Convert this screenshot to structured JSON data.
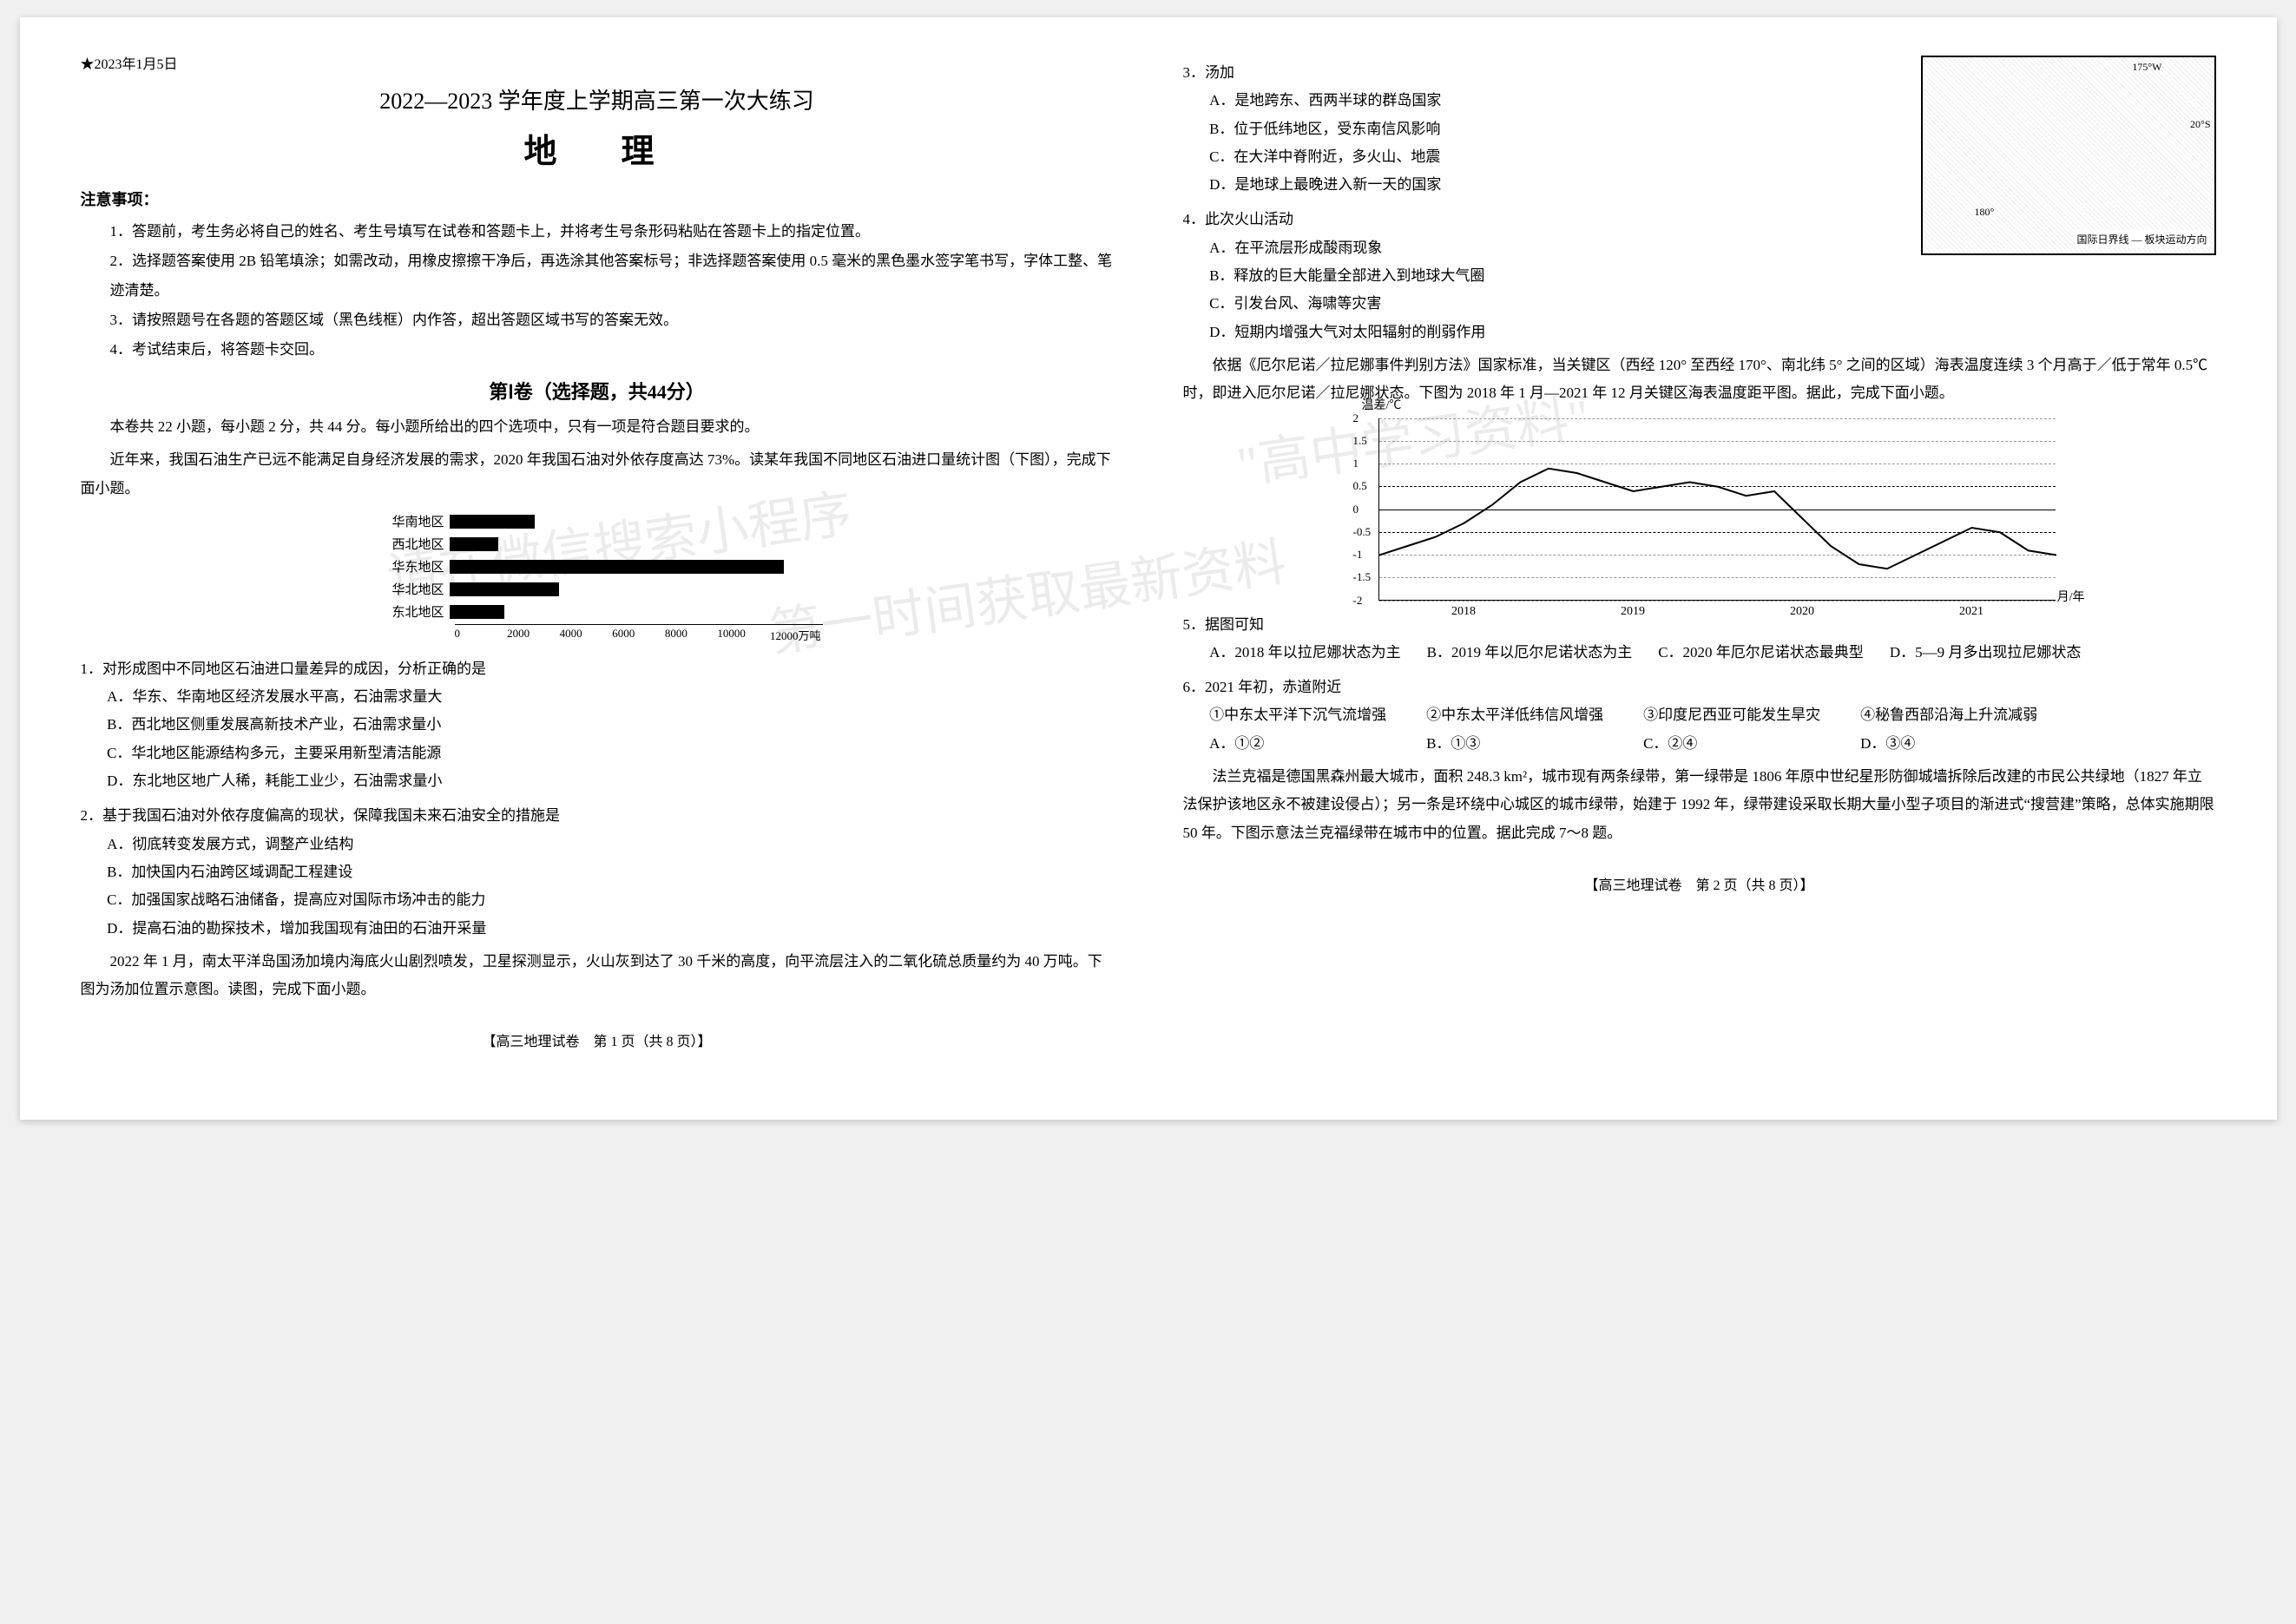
{
  "header": {
    "date_star": "★2023年1月5日",
    "exam_title": "2022—2023 学年度上学期高三第一次大练习",
    "subject": "地　理",
    "notice_head": "注意事项：",
    "notices": [
      "1．答题前，考生务必将自己的姓名、考生号填写在试卷和答题卡上，并将考生号条形码粘贴在答题卡上的指定位置。",
      "2．选择题答案使用 2B 铅笔填涂；如需改动，用橡皮擦擦干净后，再选涂其他答案标号；非选择题答案使用 0.5 毫米的黑色墨水签字笔书写，字体工整、笔迹清楚。",
      "3．请按照题号在各题的答题区域（黑色线框）内作答，超出答题区域书写的答案无效。",
      "4．考试结束后，将答题卡交回。"
    ],
    "section1": "第Ⅰ卷（选择题，共44分）",
    "section1_note": "本卷共 22 小题，每小题 2 分，共 44 分。每小题所给出的四个选项中，只有一项是符合题目要求的。"
  },
  "passage1": {
    "intro": "近年来，我国石油生产已远不能满足自身经济发展的需求，2020 年我国石油对外依存度高达 73%。读某年我国不同地区石油进口量统计图（下图），完成下面小题。",
    "bars": {
      "regions": [
        "华南地区",
        "西北地区",
        "华东地区",
        "华北地区",
        "东北地区"
      ],
      "values": [
        2800,
        1600,
        11000,
        3600,
        1800
      ],
      "axis": [
        "0",
        "2000",
        "4000",
        "6000",
        "8000",
        "10000",
        "12000万吨"
      ],
      "max": 12000,
      "bar_color": "#000000"
    },
    "q1": {
      "stem": "1．对形成图中不同地区石油进口量差异的成因，分析正确的是",
      "opts": [
        "A．华东、华南地区经济发展水平高，石油需求量大",
        "B．西北地区侧重发展高新技术产业，石油需求量小",
        "C．华北地区能源结构多元，主要采用新型清洁能源",
        "D．东北地区地广人稀，耗能工业少，石油需求量小"
      ]
    },
    "q2": {
      "stem": "2．基于我国石油对外依存度偏高的现状，保障我国未来石油安全的措施是",
      "opts": [
        "A．彻底转变发展方式，调整产业结构",
        "B．加快国内石油跨区域调配工程建设",
        "C．加强国家战略石油储备，提高应对国际市场冲击的能力",
        "D．提高石油的勘探技术，增加我国现有油田的石油开采量"
      ]
    }
  },
  "passage2": {
    "intro": "2022 年 1 月，南太平洋岛国汤加境内海底火山剧烈喷发，卫星探测显示，火山灰到达了 30 千米的高度，向平流层注入的二氧化硫总质量约为 40 万吨。下图为汤加位置示意图。读图，完成下面小题。",
    "footer": "【高三地理试卷　第 1 页（共 8 页）】"
  },
  "right": {
    "q3": {
      "stem": "3．汤加",
      "opts": [
        "A．是地跨东、西两半球的群岛国家",
        "B．位于低纬地区，受东南信风影响",
        "C．在大洋中脊附近，多火山、地震",
        "D．是地球上最晚进入新一天的国家"
      ]
    },
    "q4": {
      "stem": "4．此次火山活动",
      "opts": [
        "A．在平流层形成酸雨现象",
        "B．释放的巨大能量全部进入到地球大气圈",
        "C．引发台风、海啸等灾害",
        "D．短期内增强大气对太阳辐射的削弱作用"
      ]
    },
    "map": {
      "coords": [
        "175°W",
        "20°S",
        "180°"
      ],
      "legend": [
        "国际日界线",
        "板块运动方向"
      ]
    },
    "passage3_intro": "依据《厄尔尼诺／拉尼娜事件判别方法》国家标准，当关键区（西经 120° 至西经 170°、南北纬 5° 之间的区域）海表温度连续 3 个月高于／低于常年 0.5℃时，即进入厄尔尼诺／拉尼娜状态。下图为 2018 年 1 月—2021 年 12 月关键区海表温度距平图。据此，完成下面小题。",
    "chart": {
      "ylabel": "温差/℃",
      "yticks": [
        "2",
        "1.5",
        "1",
        "0.5",
        "0",
        "-0.5",
        "-1",
        "-1.5",
        "-2"
      ],
      "ylim": [
        -2,
        2
      ],
      "years": [
        "2018",
        "2019",
        "2020",
        "2021"
      ],
      "xunit": "月/年",
      "threshold_pos": 0.5,
      "threshold_neg": -0.5,
      "line_color": "#000000",
      "grid_color": "#999999",
      "points": [
        [
          0,
          -1.0
        ],
        [
          2,
          -0.8
        ],
        [
          4,
          -0.6
        ],
        [
          6,
          -0.3
        ],
        [
          8,
          0.1
        ],
        [
          10,
          0.6
        ],
        [
          12,
          0.9
        ],
        [
          14,
          0.8
        ],
        [
          16,
          0.6
        ],
        [
          18,
          0.4
        ],
        [
          20,
          0.5
        ],
        [
          22,
          0.6
        ],
        [
          24,
          0.5
        ],
        [
          26,
          0.3
        ],
        [
          28,
          0.4
        ],
        [
          30,
          -0.2
        ],
        [
          32,
          -0.8
        ],
        [
          34,
          -1.2
        ],
        [
          36,
          -1.3
        ],
        [
          38,
          -1.0
        ],
        [
          40,
          -0.7
        ],
        [
          42,
          -0.4
        ],
        [
          44,
          -0.5
        ],
        [
          46,
          -0.9
        ],
        [
          48,
          -1.0
        ]
      ]
    },
    "q5": {
      "stem": "5．据图可知",
      "opts": [
        "A．2018 年以拉尼娜状态为主",
        "B．2019 年以厄尔尼诺状态为主",
        "C．2020 年厄尔尼诺状态最典型",
        "D．5—9 月多出现拉尼娜状态"
      ]
    },
    "q6": {
      "stem": "6．2021 年初，赤道附近",
      "circled": [
        "①中东太平洋下沉气流增强",
        "②中东太平洋低纬信风增强",
        "③印度尼西亚可能发生旱灾",
        "④秘鲁西部沿海上升流减弱"
      ],
      "opts": [
        "A．①②",
        "B．①③",
        "C．②④",
        "D．③④"
      ]
    },
    "passage4_intro": "法兰克福是德国黑森州最大城市，面积 248.3 km²，城市现有两条绿带，第一绿带是 1806 年原中世纪星形防御城墙拆除后改建的市民公共绿地（1827 年立法保护该地区永不被建设侵占）；另一条是环绕中心城区的城市绿带，始建于 1992 年，绿带建设采取长期大量小型子项目的渐进式“搜营建”策略，总体实施期限 50 年。下图示意法兰克福绿带在城市中的位置。据此完成 7～8 题。",
    "footer": "【高三地理试卷　第 2 页（共 8 页）】"
  },
  "watermarks": [
    "请在微信搜索小程序",
    "\"高中学习资料\"",
    "第一时间获取最新资料"
  ]
}
